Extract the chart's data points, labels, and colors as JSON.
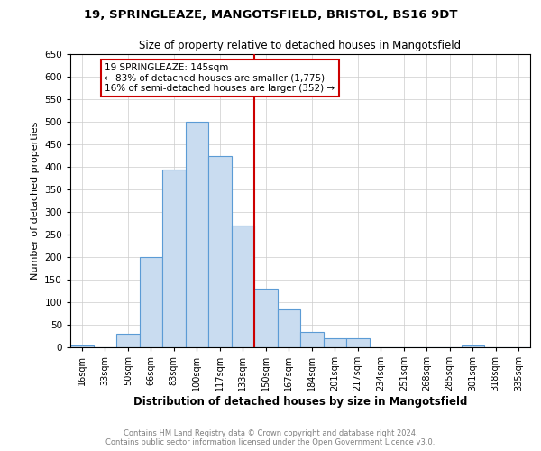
{
  "title": "19, SPRINGLEAZE, MANGOTSFIELD, BRISTOL, BS16 9DT",
  "subtitle": "Size of property relative to detached houses in Mangotsfield",
  "xlabel": "Distribution of detached houses by size in Mangotsfield",
  "ylabel": "Number of detached properties",
  "footer_line1": "Contains HM Land Registry data © Crown copyright and database right 2024.",
  "footer_line2": "Contains public sector information licensed under the Open Government Licence v3.0.",
  "categories": [
    "16sqm",
    "33sqm",
    "50sqm",
    "66sqm",
    "83sqm",
    "100sqm",
    "117sqm",
    "133sqm",
    "150sqm",
    "167sqm",
    "184sqm",
    "201sqm",
    "217sqm",
    "234sqm",
    "251sqm",
    "268sqm",
    "285sqm",
    "301sqm",
    "318sqm",
    "335sqm"
  ],
  "values": [
    5,
    0,
    30,
    200,
    395,
    500,
    425,
    270,
    130,
    85,
    35,
    20,
    20,
    0,
    0,
    0,
    0,
    5,
    0,
    0
  ],
  "bar_color": "#c9dcf0",
  "bar_edge_color": "#5b9bd5",
  "annotation_text": "19 SPRINGLEAZE: 145sqm\n← 83% of detached houses are smaller (1,775)\n16% of semi-detached houses are larger (352) →",
  "annotation_box_color": "white",
  "annotation_box_edge_color": "#cc0000",
  "vline_color": "#cc0000",
  "ylim": [
    0,
    650
  ],
  "yticks": [
    0,
    50,
    100,
    150,
    200,
    250,
    300,
    350,
    400,
    450,
    500,
    550,
    600,
    650
  ]
}
